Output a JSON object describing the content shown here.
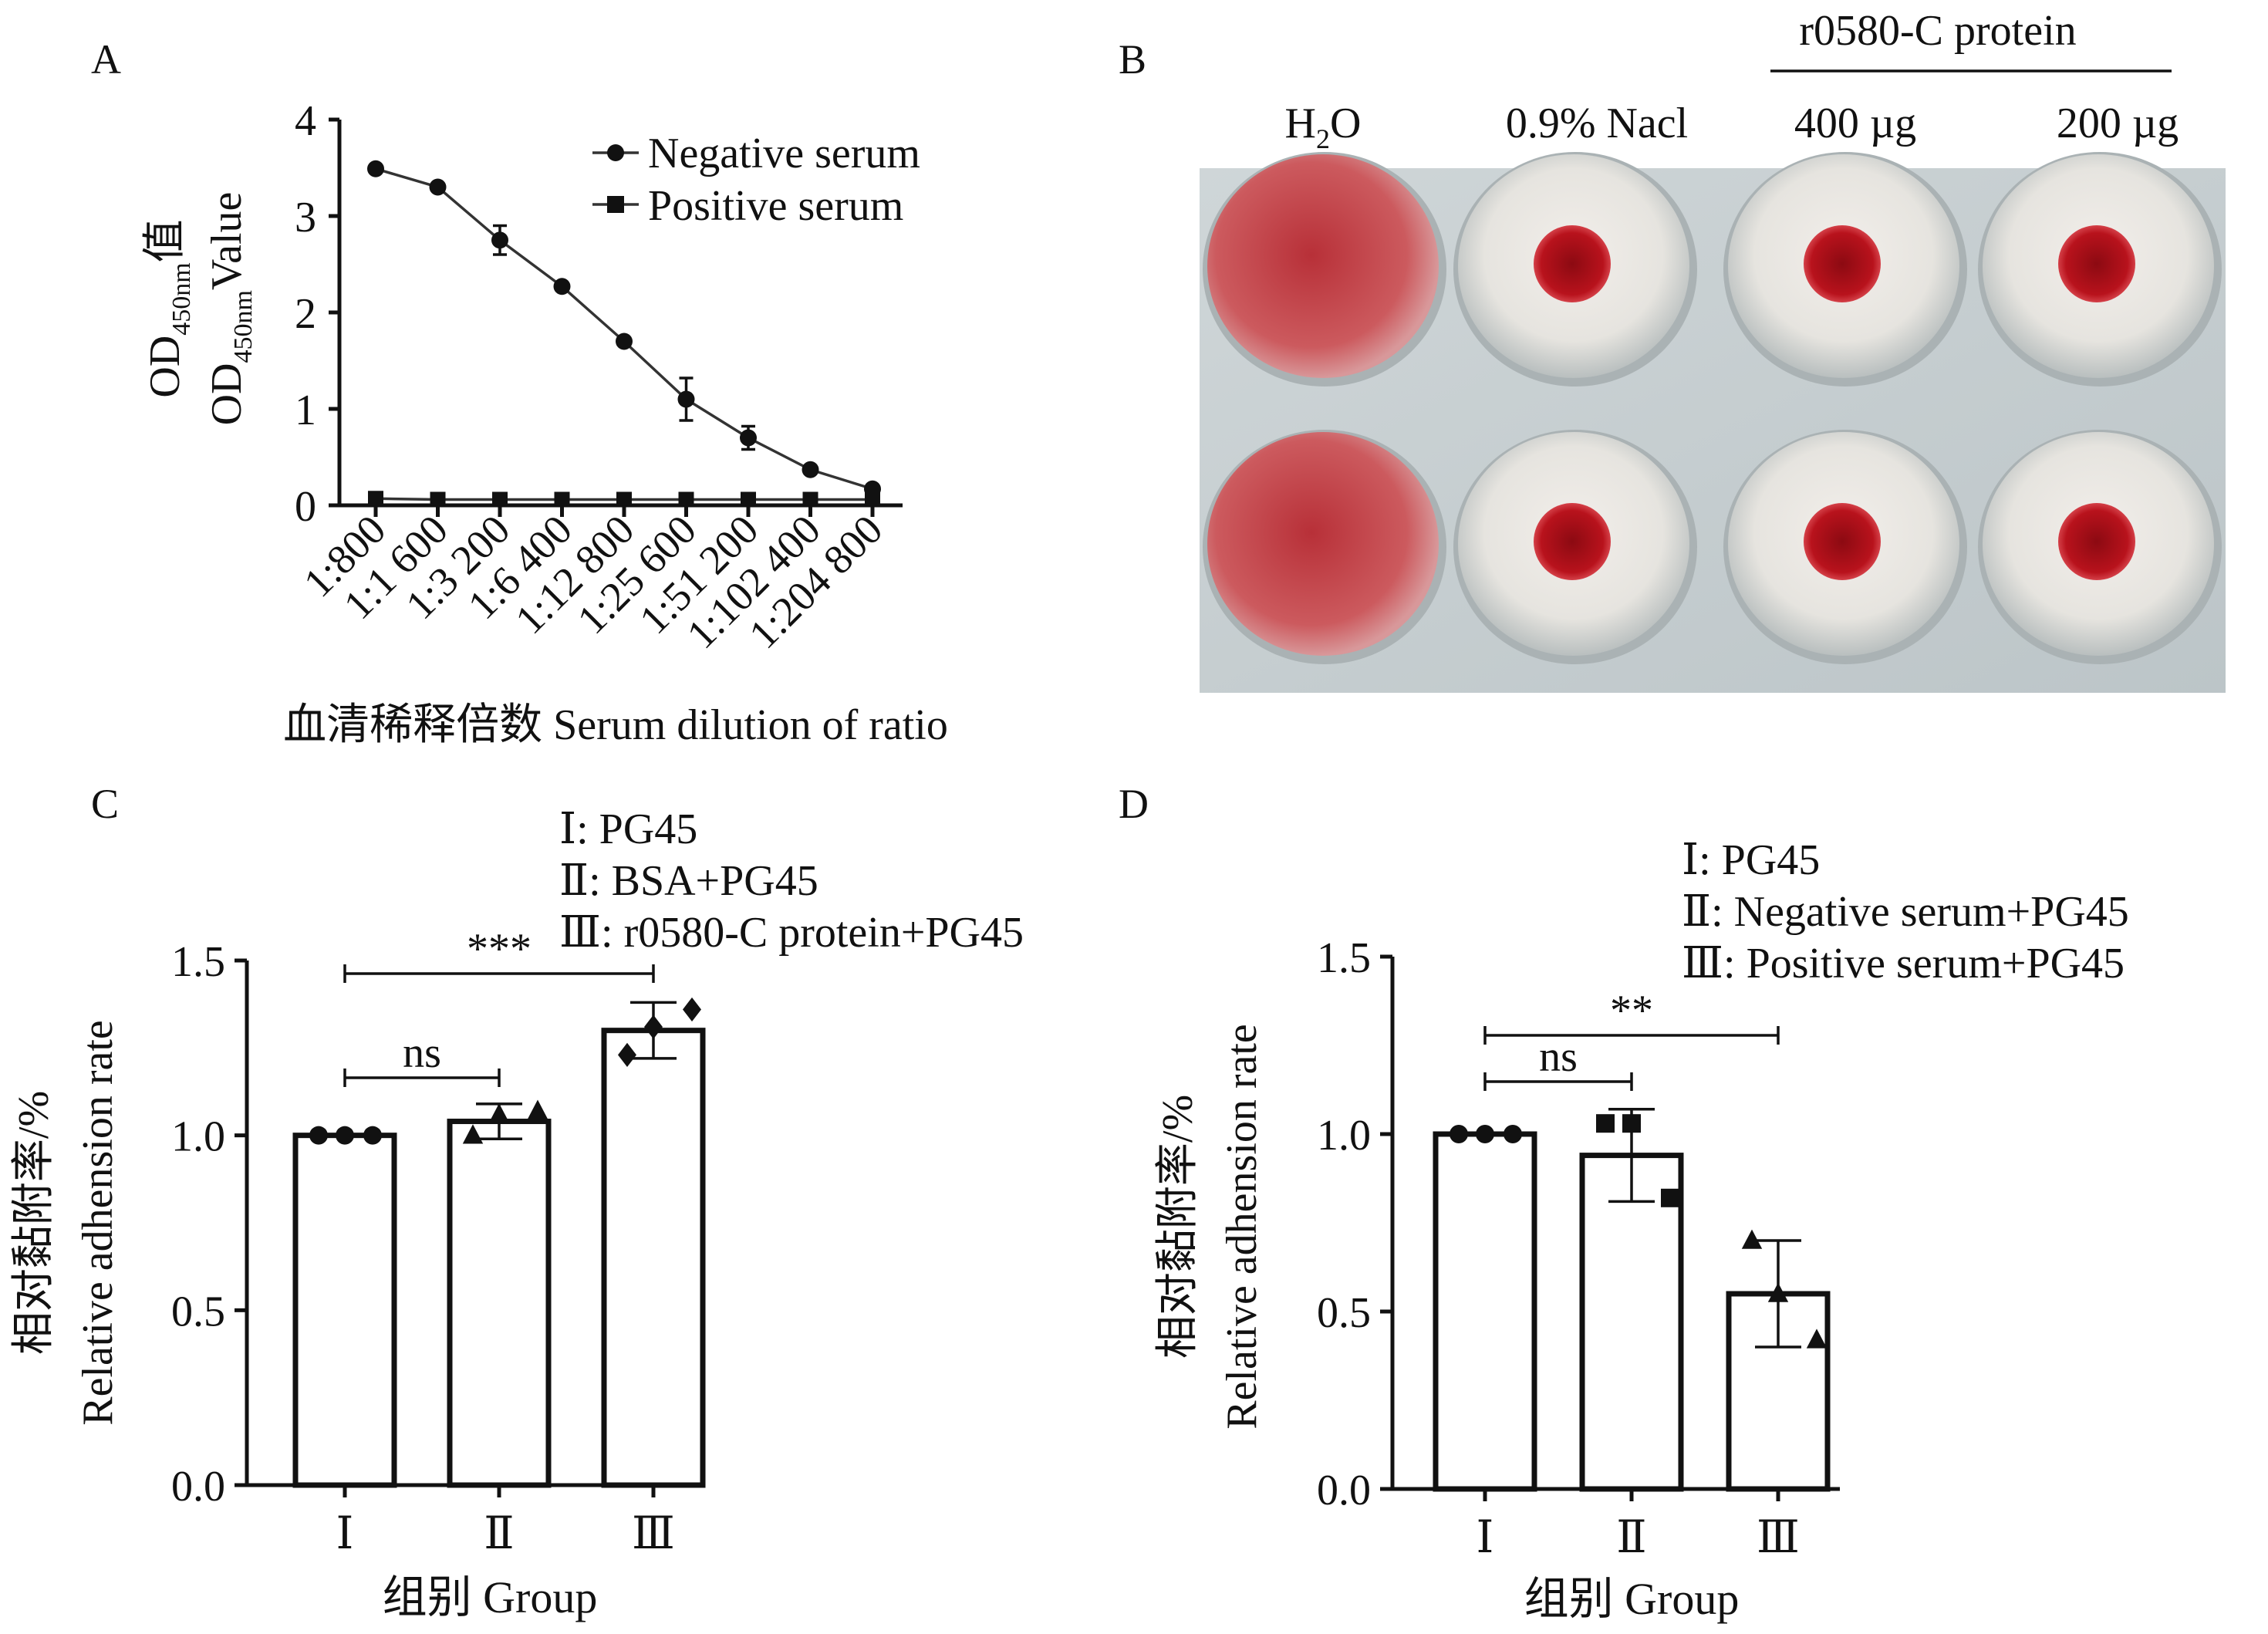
{
  "panels": {
    "A": {
      "label": "A"
    },
    "B": {
      "label": "B"
    },
    "C": {
      "label": "C"
    },
    "D": {
      "label": "D"
    }
  },
  "panel_b": {
    "group_label": "r0580-C protein",
    "columns": [
      "H2O",
      "0.9% Nacl",
      "400 µg",
      "200 µg"
    ],
    "h2o_main": "H",
    "h2o_sub": "2",
    "h2o_tail": "O"
  },
  "colors": {
    "well_plate_bg": "#c9d2d4",
    "blood_red": "#b8121c",
    "lysed_red": "#c8484e"
  },
  "chart_data": [
    {
      "id": "A",
      "type": "line",
      "ylabel_line1": {
        "main": "OD",
        "sub": "450nm",
        "tail": "值"
      },
      "ylabel_line2": {
        "main": "OD",
        "sub": "450nm",
        "tail": "Value"
      },
      "xlabel": "血清稀释倍数 Serum dilution of ratio",
      "categories": [
        "1:800",
        "1:1 600",
        "1:3 200",
        "1:6 400",
        "1:12 800",
        "1:25 600",
        "1:51 200",
        "1:102 400",
        "1:204 800"
      ],
      "ylim": [
        0,
        4
      ],
      "yticks": [
        "0",
        "1",
        "2",
        "3",
        "4"
      ],
      "legend_position": "top-right",
      "series": [
        {
          "name": "Negative serum",
          "marker": "circle",
          "values": [
            3.49,
            3.3,
            2.75,
            2.27,
            1.7,
            1.1,
            0.7,
            0.37,
            0.17
          ],
          "errors": [
            0,
            0,
            0.15,
            0,
            0,
            0.22,
            0.12,
            0,
            0
          ]
        },
        {
          "name": "Positive serum",
          "marker": "square",
          "values": [
            0.07,
            0.06,
            0.06,
            0.06,
            0.06,
            0.06,
            0.06,
            0.06,
            0.06
          ],
          "errors": [
            0,
            0,
            0,
            0,
            0,
            0,
            0,
            0,
            0
          ]
        }
      ]
    },
    {
      "id": "C",
      "type": "bar",
      "ylabel_line1": "相对黏附率/%",
      "ylabel_line2": "Relative adhension rate",
      "xlabel": "组别 Group",
      "categories": [
        "Ⅰ",
        "Ⅱ",
        "Ⅲ"
      ],
      "values": [
        1.0,
        1.04,
        1.3
      ],
      "errors": [
        0,
        0.05,
        0.08
      ],
      "points": [
        [
          1.0,
          1.0,
          1.0
        ],
        [
          1.0,
          1.06,
          1.07
        ],
        [
          1.23,
          1.31,
          1.36
        ]
      ],
      "point_marker": [
        "circle",
        "triangle",
        "diamond"
      ],
      "ylim": [
        0,
        1.5
      ],
      "yticks": [
        "0.0",
        "0.5",
        "1.0",
        "1.5"
      ],
      "legend": [
        "Ⅰ: PG45",
        "Ⅱ: BSA+PG45",
        "Ⅲ: r0580-C protein+PG45"
      ],
      "significance": [
        {
          "from": 0,
          "to": 1,
          "label": "ns"
        },
        {
          "from": 0,
          "to": 2,
          "label": "***"
        }
      ]
    },
    {
      "id": "D",
      "type": "bar",
      "ylabel_line1": "相对黏附率/%",
      "ylabel_line2": "Relative adhension rate",
      "xlabel": "组别 Group",
      "categories": [
        "Ⅰ",
        "Ⅱ",
        "Ⅲ"
      ],
      "values": [
        1.0,
        0.94,
        0.55
      ],
      "errors": [
        0,
        0.13,
        0.15
      ],
      "points": [
        [
          1.0,
          1.0,
          1.0
        ],
        [
          1.03,
          1.03,
          0.82
        ],
        [
          0.7,
          0.55,
          0.42
        ]
      ],
      "point_marker": [
        "circle",
        "square",
        "triangle"
      ],
      "ylim": [
        0,
        1.5
      ],
      "yticks": [
        "0.0",
        "0.5",
        "1.0",
        "1.5"
      ],
      "legend": [
        "Ⅰ: PG45",
        "Ⅱ: Negative serum+PG45",
        "Ⅲ: Positive serum+PG45"
      ],
      "significance": [
        {
          "from": 0,
          "to": 1,
          "label": "ns"
        },
        {
          "from": 0,
          "to": 2,
          "label": "**"
        }
      ]
    }
  ]
}
